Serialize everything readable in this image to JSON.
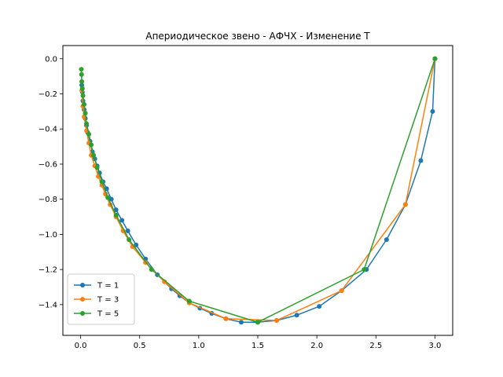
{
  "chart_data": {
    "type": "line",
    "title": "Апериодическое звено - АФЧХ - Изменение T",
    "xlabel": "",
    "ylabel": "",
    "xlim": [
      -0.15,
      3.15
    ],
    "ylim": [
      -1.575,
      0.075
    ],
    "xticks": [
      "0.0",
      "0.5",
      "1.0",
      "1.5",
      "2.0",
      "2.5",
      "3.0"
    ],
    "yticks": [
      "0.0",
      "−0.2",
      "−0.4",
      "−0.6",
      "−0.8",
      "−1.0",
      "−1.2",
      "−1.4"
    ],
    "grid": false,
    "legend_position": "lower-left",
    "series": [
      {
        "name": "T = 1",
        "color": "#1f77b4",
        "x": [
          3.0,
          2.98,
          2.88,
          2.75,
          2.59,
          2.42,
          2.21,
          2.02,
          1.83,
          1.66,
          1.5,
          1.36,
          1.23,
          1.11,
          1.01,
          0.92,
          0.84,
          0.77,
          0.65,
          0.55,
          0.47,
          0.4,
          0.35,
          0.3,
          0.26,
          0.22,
          0.19,
          0.16,
          0.14,
          0.12,
          0.1,
          0.08,
          0.06,
          0.05,
          0.04,
          0.03,
          0.02,
          0.015,
          0.01
        ],
        "y": [
          0.0,
          -0.3,
          -0.58,
          -0.83,
          -1.03,
          -1.2,
          -1.32,
          -1.41,
          -1.46,
          -1.49,
          -1.5,
          -1.5,
          -1.48,
          -1.45,
          -1.42,
          -1.39,
          -1.35,
          -1.31,
          -1.23,
          -1.14,
          -1.06,
          -0.98,
          -0.92,
          -0.86,
          -0.8,
          -0.74,
          -0.7,
          -0.65,
          -0.61,
          -0.57,
          -0.53,
          -0.47,
          -0.42,
          -0.38,
          -0.34,
          -0.29,
          -0.24,
          -0.19,
          -0.15
        ]
      },
      {
        "name": "T = 3",
        "color": "#ff7f0e",
        "x": [
          3.0,
          2.75,
          2.21,
          1.66,
          1.23,
          0.92,
          0.71,
          0.55,
          0.44,
          0.36,
          0.3,
          0.25,
          0.21,
          0.18,
          0.15,
          0.12,
          0.09,
          0.07,
          0.05,
          0.03,
          0.02,
          0.01
        ],
        "y": [
          0.0,
          -0.83,
          -1.32,
          -1.49,
          -1.48,
          -1.39,
          -1.27,
          -1.16,
          -1.07,
          -0.98,
          -0.9,
          -0.83,
          -0.77,
          -0.72,
          -0.67,
          -0.61,
          -0.55,
          -0.48,
          -0.41,
          -0.33,
          -0.27,
          -0.18
        ]
      },
      {
        "name": "T = 5",
        "color": "#2ca02c",
        "x": [
          3.0,
          2.4,
          1.5,
          0.92,
          0.6,
          0.41,
          0.3,
          0.23,
          0.18,
          0.14,
          0.11,
          0.09,
          0.07,
          0.05,
          0.04,
          0.03,
          0.02,
          0.015,
          0.01,
          0.008,
          0.006
        ],
        "y": [
          0.0,
          -1.2,
          -1.5,
          -1.38,
          -1.2,
          -1.03,
          -0.89,
          -0.79,
          -0.7,
          -0.62,
          -0.55,
          -0.49,
          -0.43,
          -0.37,
          -0.31,
          -0.26,
          -0.21,
          -0.17,
          -0.13,
          -0.09,
          -0.06
        ]
      }
    ]
  }
}
